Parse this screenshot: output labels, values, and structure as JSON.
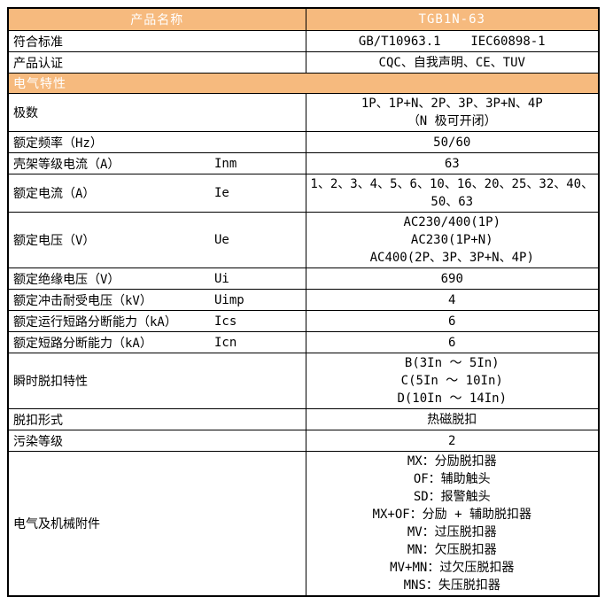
{
  "colors": {
    "header_bg": "#F6BA7E",
    "header_text": "#FFFFFF",
    "border": "#000000",
    "body_text": "#000000"
  },
  "table": {
    "header": {
      "col1": "产品名称",
      "col2": "TGB1N-63"
    },
    "rows_top": [
      {
        "label": "符合标准",
        "value": "GB/T10963.1    IEC60898-1"
      },
      {
        "label": "产品认证",
        "value": "CQC、自我声明、CE、TUV"
      }
    ],
    "section": {
      "title": "电气特性"
    },
    "rows": [
      {
        "label": "极数",
        "symbol": "",
        "values": [
          "1P、1P+N、2P、3P、3P+N、4P",
          "（N 极可开闭）"
        ]
      },
      {
        "label": "额定频率（Hz）",
        "symbol": "",
        "values": [
          "50/60"
        ]
      },
      {
        "label": "壳架等级电流（A）",
        "symbol": "Inm",
        "values": [
          "63"
        ]
      },
      {
        "label": "额定电流（A）",
        "symbol": "Ie",
        "values": [
          "1、2、3、4、5、6、10、16、20、25、32、40、50、63"
        ]
      },
      {
        "label": "额定电压（V）",
        "symbol": "Ue",
        "values": [
          "AC230/400(1P)",
          "AC230(1P+N)",
          "AC400(2P、3P、3P+N、4P)"
        ]
      },
      {
        "label": "额定绝缘电压（V）",
        "symbol": "Ui",
        "values": [
          "690"
        ]
      },
      {
        "label": "额定冲击耐受电压（kV）",
        "symbol": "Uimp",
        "values": [
          "4"
        ]
      },
      {
        "label": "额定运行短路分断能力（kA）",
        "symbol": "Ics",
        "values": [
          "6"
        ]
      },
      {
        "label": "额定短路分断能力（kA）",
        "symbol": "Icn",
        "values": [
          "6"
        ]
      },
      {
        "label": "瞬时脱扣特性",
        "symbol": "",
        "values": [
          "B(3In ～ 5In)",
          "C(5In ～ 10In)",
          "D(10In ～ 14In)"
        ]
      },
      {
        "label": "脱扣形式",
        "symbol": "",
        "values": [
          "热磁脱扣"
        ]
      },
      {
        "label": "污染等级",
        "symbol": "",
        "values": [
          "2"
        ]
      },
      {
        "label": "电气及机械附件",
        "symbol": "",
        "values": [
          "MX：分励脱扣器",
          "OF：辅助触头",
          "SD：报警触头",
          "MX+OF：分励 + 辅助脱扣器",
          "MV：过压脱扣器",
          "MN：欠压脱扣器",
          "MV+MN：过欠压脱扣器",
          "MNS：失压脱扣器"
        ]
      }
    ]
  }
}
